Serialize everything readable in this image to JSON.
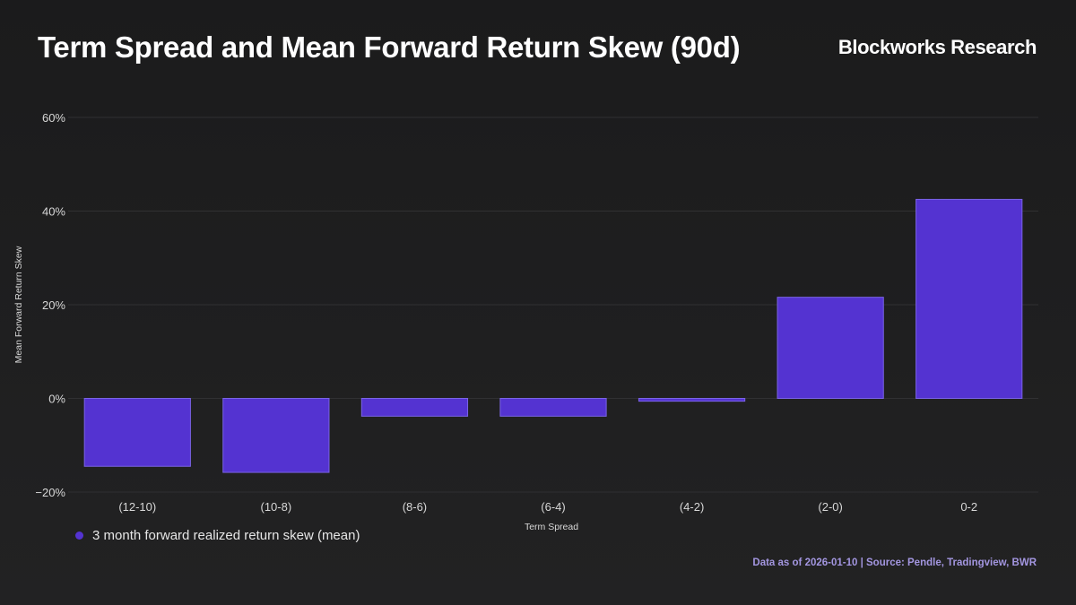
{
  "header": {
    "title": "Term Spread and Mean Forward Return Skew (90d)",
    "brand": "Blockworks Research"
  },
  "legend": {
    "label": "3 month forward realized return skew (mean)"
  },
  "footer": {
    "text": "Data as of 2026-01-10 | Source: Pendle, Tradingview, BWR"
  },
  "colors": {
    "bar": "#5433d1",
    "bar_stroke": "#7a63e6",
    "footer": "#a396e0",
    "grid": "#303032",
    "tick_text": "#d8d8d8"
  },
  "chart_data": {
    "type": "bar",
    "title": "Term Spread and Mean Forward Return Skew (90d)",
    "xlabel": "Term Spread",
    "ylabel": "Mean Forward Return Skew",
    "categories": [
      "(12-10)",
      "(10-8)",
      "(8-6)",
      "(6-4)",
      "(4-2)",
      "(2-0)",
      "0-2"
    ],
    "series": [
      {
        "name": "3 month forward realized return skew (mean)",
        "values": [
          -14.5,
          -15.8,
          -3.8,
          -3.8,
          -0.6,
          21.6,
          42.5
        ]
      }
    ],
    "ylim": [
      -20,
      60
    ],
    "yticks": [
      -20,
      0,
      20,
      40,
      60
    ],
    "ytick_labels": [
      "−20%",
      "0%",
      "20%",
      "40%",
      "60%"
    ],
    "grid": true,
    "legend_position": "bottom-left"
  }
}
